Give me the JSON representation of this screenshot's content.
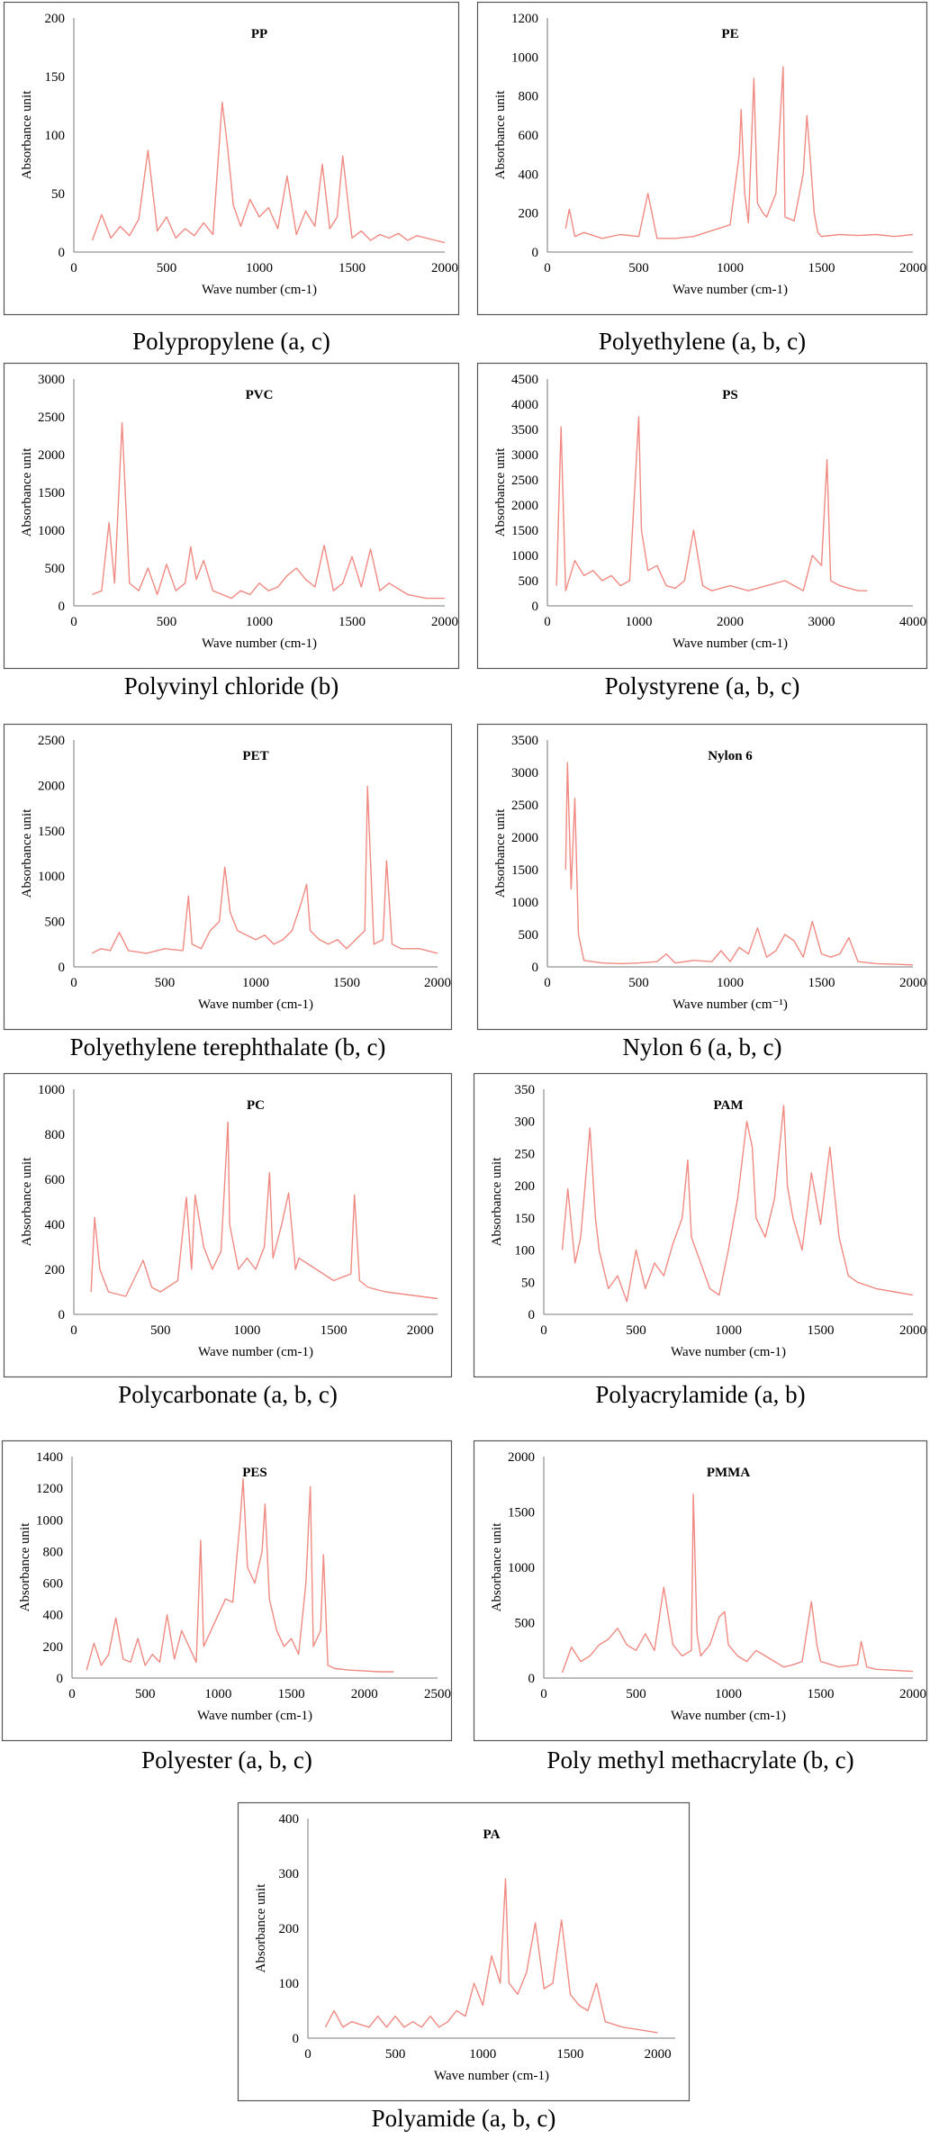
{
  "line_color": "#f08a82",
  "charts": [
    {
      "code": "PP",
      "caption": "Polypropylene (a, c)",
      "ylabel": "Absorbance unit",
      "xlabel": "Wave number (cm-1)",
      "yticks": [
        "200",
        "150",
        "100",
        "50",
        "0"
      ],
      "xticks": [
        "0",
        "500",
        "1000",
        "1500",
        "2000"
      ]
    },
    {
      "code": "PE",
      "caption": "Polyethylene (a, b, c)",
      "ylabel": "Absorbance unit",
      "xlabel": "Wave number (cm-1)",
      "yticks": [
        "1200",
        "1000",
        "800",
        "600",
        "400",
        "200",
        "0"
      ],
      "xticks": [
        "0",
        "500",
        "1000",
        "1500",
        "2000"
      ]
    },
    {
      "code": "PVC",
      "caption": "Polyvinyl chloride (b)",
      "ylabel": "Absorbance unit",
      "xlabel": "Wave number (cm-1)",
      "yticks": [
        "3000",
        "2500",
        "2000",
        "1500",
        "1000",
        "500",
        "0"
      ],
      "xticks": [
        "0",
        "500",
        "1000",
        "1500",
        "2000"
      ]
    },
    {
      "code": "PS",
      "caption": "Polystyrene (a, b, c)",
      "ylabel": "Absorbance unit",
      "xlabel": "Wave number (cm-1)",
      "yticks": [
        "4500",
        "4000",
        "3500",
        "3000",
        "2500",
        "2000",
        "1500",
        "1000",
        "500",
        "0"
      ],
      "xticks": [
        "0",
        "1000",
        "2000",
        "3000",
        "4000"
      ]
    },
    {
      "code": "PET",
      "caption": "Polyethylene terephthalate (b, c)",
      "ylabel": "Absorbance unit",
      "xlabel": "Wave number (cm-1)",
      "yticks": [
        "2500",
        "2000",
        "1500",
        "1000",
        "500",
        "0"
      ],
      "xticks": [
        "0",
        "500",
        "1000",
        "1500",
        "2000"
      ]
    },
    {
      "code": "Nylon 6",
      "caption": "Nylon 6 (a, b, c)",
      "ylabel": "Absorbance unit",
      "xlabel": "Wave number (cm⁻¹)",
      "yticks": [
        "3500",
        "3000",
        "2500",
        "2000",
        "1500",
        "1000",
        "500",
        "0"
      ],
      "xticks": [
        "0",
        "500",
        "1000",
        "1500",
        "2000"
      ]
    },
    {
      "code": "PC",
      "caption": "Polycarbonate (a, b, c)",
      "ylabel": "Absorbance unit",
      "xlabel": "Wave number (cm-1)",
      "yticks": [
        "1000",
        "800",
        "600",
        "400",
        "200",
        "0"
      ],
      "xticks": [
        "0",
        "500",
        "1000",
        "1500",
        "2000"
      ]
    },
    {
      "code": "PAM",
      "caption": "Polyacrylamide (a, b)",
      "ylabel": "Absorbance unit",
      "xlabel": "Wave number (cm-1)",
      "yticks": [
        "350",
        "300",
        "250",
        "200",
        "150",
        "100",
        "50",
        "0"
      ],
      "xticks": [
        "0",
        "500",
        "1000",
        "1500",
        "2000"
      ]
    },
    {
      "code": "PES",
      "caption": "Polyester (a, b, c)",
      "ylabel": "Absorbance unit",
      "xlabel": "Wave number (cm-1)",
      "yticks": [
        "1400",
        "1200",
        "1000",
        "800",
        "600",
        "400",
        "200",
        "0"
      ],
      "xticks": [
        "0",
        "500",
        "1000",
        "1500",
        "2000",
        "2500"
      ]
    },
    {
      "code": "PMMA",
      "caption": "Poly methyl methacrylate (b, c)",
      "ylabel": "Absorbance unit",
      "xlabel": "Wave number (cm-1)",
      "yticks": [
        "2000",
        "1500",
        "1000",
        "500",
        "0"
      ],
      "xticks": [
        "0",
        "500",
        "1000",
        "1500",
        "2000"
      ]
    },
    {
      "code": "PA",
      "caption": "Polyamide (a, b, c)",
      "ylabel": "Absorbance unit",
      "xlabel": "Wave number (cm-1)",
      "yticks": [
        "400",
        "300",
        "200",
        "100",
        "0"
      ],
      "xticks": [
        "0",
        "500",
        "1000",
        "1500",
        "2000"
      ]
    }
  ],
  "chart_data": [
    {
      "type": "line",
      "title": "PP",
      "xlabel": "Wave number (cm-1)",
      "ylabel": "Absorbance unit",
      "xlim": [
        0,
        2000
      ],
      "ylim": [
        0,
        200
      ],
      "x": [
        100,
        150,
        200,
        250,
        300,
        350,
        400,
        450,
        500,
        550,
        600,
        650,
        700,
        750,
        800,
        830,
        860,
        900,
        950,
        1000,
        1050,
        1100,
        1150,
        1200,
        1250,
        1300,
        1340,
        1380,
        1420,
        1450,
        1500,
        1550,
        1600,
        1650,
        1700,
        1750,
        1800,
        1850,
        1900,
        1950,
        2000
      ],
      "y": [
        10,
        32,
        12,
        22,
        14,
        28,
        87,
        18,
        30,
        12,
        20,
        14,
        25,
        15,
        128,
        88,
        40,
        22,
        45,
        30,
        38,
        20,
        65,
        15,
        35,
        22,
        75,
        20,
        30,
        82,
        12,
        18,
        10,
        15,
        12,
        16,
        10,
        14,
        12,
        10,
        8
      ]
    },
    {
      "type": "line",
      "title": "PE",
      "xlabel": "Wave number (cm-1)",
      "ylabel": "Absorbance unit",
      "xlim": [
        0,
        2000
      ],
      "ylim": [
        0,
        1200
      ],
      "x": [
        100,
        120,
        150,
        200,
        300,
        400,
        500,
        550,
        600,
        700,
        800,
        900,
        1000,
        1050,
        1060,
        1080,
        1100,
        1130,
        1150,
        1180,
        1200,
        1250,
        1290,
        1300,
        1350,
        1400,
        1420,
        1440,
        1460,
        1480,
        1500,
        1600,
        1700,
        1800,
        1900,
        2000
      ],
      "y": [
        120,
        220,
        80,
        100,
        70,
        90,
        80,
        300,
        70,
        70,
        80,
        110,
        140,
        500,
        730,
        300,
        150,
        890,
        250,
        200,
        180,
        300,
        950,
        180,
        160,
        400,
        700,
        460,
        200,
        100,
        80,
        90,
        85,
        90,
        80,
        90
      ]
    },
    {
      "type": "line",
      "title": "PVC",
      "xlabel": "Wave number (cm-1)",
      "ylabel": "Absorbance unit",
      "xlim": [
        0,
        2000
      ],
      "ylim": [
        0,
        3000
      ],
      "x": [
        100,
        150,
        190,
        220,
        260,
        300,
        350,
        400,
        450,
        500,
        550,
        600,
        630,
        660,
        700,
        750,
        800,
        850,
        900,
        950,
        1000,
        1050,
        1100,
        1150,
        1200,
        1250,
        1300,
        1350,
        1400,
        1450,
        1500,
        1550,
        1600,
        1650,
        1700,
        1800,
        1900,
        2000
      ],
      "y": [
        150,
        200,
        1100,
        300,
        2420,
        300,
        200,
        500,
        150,
        550,
        200,
        300,
        780,
        350,
        600,
        200,
        150,
        100,
        200,
        150,
        300,
        200,
        250,
        400,
        500,
        350,
        250,
        800,
        200,
        300,
        650,
        250,
        750,
        200,
        300,
        150,
        100,
        100
      ]
    },
    {
      "type": "line",
      "title": "PS",
      "xlabel": "Wave number (cm-1)",
      "ylabel": "Absorbance unit",
      "xlim": [
        0,
        4000
      ],
      "ylim": [
        0,
        4500
      ],
      "x": [
        100,
        150,
        200,
        300,
        400,
        500,
        600,
        700,
        800,
        900,
        1000,
        1030,
        1100,
        1200,
        1300,
        1400,
        1500,
        1600,
        1700,
        1800,
        2000,
        2200,
        2400,
        2600,
        2800,
        2900,
        3000,
        3060,
        3100,
        3200,
        3400,
        3500
      ],
      "y": [
        400,
        3550,
        300,
        900,
        600,
        700,
        500,
        600,
        400,
        500,
        3750,
        1500,
        700,
        800,
        400,
        350,
        500,
        1500,
        400,
        300,
        400,
        300,
        400,
        500,
        300,
        1000,
        800,
        2900,
        500,
        400,
        300,
        300
      ]
    },
    {
      "type": "line",
      "title": "PET",
      "xlabel": "Wave number (cm-1)",
      "ylabel": "Absorbance unit",
      "xlim": [
        0,
        2000
      ],
      "ylim": [
        0,
        2500
      ],
      "x": [
        100,
        150,
        200,
        250,
        300,
        400,
        500,
        600,
        630,
        650,
        700,
        750,
        800,
        830,
        860,
        900,
        950,
        1000,
        1050,
        1100,
        1150,
        1200,
        1250,
        1280,
        1300,
        1350,
        1400,
        1450,
        1500,
        1550,
        1600,
        1615,
        1650,
        1700,
        1720,
        1750,
        1800,
        1900,
        2000
      ],
      "y": [
        150,
        200,
        180,
        380,
        180,
        150,
        200,
        180,
        780,
        250,
        200,
        400,
        500,
        1100,
        600,
        400,
        350,
        300,
        350,
        250,
        300,
        400,
        700,
        910,
        400,
        300,
        250,
        300,
        200,
        300,
        400,
        1990,
        250,
        300,
        1170,
        250,
        200,
        200,
        150
      ]
    },
    {
      "type": "line",
      "title": "Nylon 6",
      "xlabel": "Wave number (cm⁻¹)",
      "ylabel": "Absorbance unit",
      "xlim": [
        0,
        2000
      ],
      "ylim": [
        0,
        3500
      ],
      "x": [
        100,
        110,
        130,
        150,
        170,
        200,
        300,
        400,
        500,
        600,
        650,
        700,
        800,
        900,
        950,
        1000,
        1050,
        1100,
        1150,
        1200,
        1250,
        1300,
        1350,
        1400,
        1450,
        1500,
        1550,
        1600,
        1650,
        1700,
        1800,
        1900,
        2000
      ],
      "y": [
        1500,
        3150,
        1200,
        2600,
        500,
        100,
        60,
        50,
        60,
        80,
        200,
        60,
        100,
        80,
        250,
        80,
        300,
        200,
        600,
        150,
        250,
        500,
        400,
        150,
        700,
        200,
        150,
        200,
        450,
        80,
        50,
        40,
        30
      ]
    },
    {
      "type": "line",
      "title": "PC",
      "xlabel": "Wave number (cm-1)",
      "ylabel": "Absorbance unit",
      "xlim": [
        0,
        2100
      ],
      "ylim": [
        0,
        1000
      ],
      "x": [
        100,
        120,
        150,
        200,
        300,
        400,
        450,
        500,
        600,
        650,
        680,
        700,
        750,
        800,
        850,
        890,
        900,
        950,
        1000,
        1050,
        1100,
        1130,
        1150,
        1200,
        1240,
        1280,
        1300,
        1400,
        1500,
        1600,
        1620,
        1650,
        1700,
        1800,
        1900,
        2000,
        2100
      ],
      "y": [
        100,
        430,
        200,
        100,
        80,
        240,
        120,
        100,
        150,
        520,
        200,
        530,
        300,
        200,
        280,
        855,
        400,
        200,
        250,
        200,
        300,
        630,
        250,
        400,
        540,
        200,
        250,
        200,
        150,
        180,
        530,
        150,
        120,
        100,
        90,
        80,
        70
      ]
    },
    {
      "type": "line",
      "title": "PAM",
      "xlabel": "Wave number (cm-1)",
      "ylabel": "Absorbance unit",
      "xlim": [
        0,
        2000
      ],
      "ylim": [
        0,
        350
      ],
      "x": [
        100,
        130,
        170,
        200,
        250,
        280,
        300,
        350,
        400,
        450,
        500,
        550,
        600,
        650,
        700,
        750,
        780,
        800,
        850,
        900,
        950,
        1000,
        1050,
        1100,
        1130,
        1150,
        1200,
        1250,
        1300,
        1320,
        1350,
        1400,
        1450,
        1500,
        1550,
        1600,
        1650,
        1700,
        1800,
        1900,
        2000
      ],
      "y": [
        100,
        195,
        80,
        120,
        290,
        150,
        100,
        40,
        60,
        20,
        100,
        40,
        80,
        60,
        110,
        150,
        240,
        120,
        80,
        40,
        30,
        100,
        180,
        300,
        260,
        150,
        120,
        180,
        325,
        200,
        150,
        100,
        220,
        140,
        260,
        120,
        60,
        50,
        40,
        35,
        30
      ]
    },
    {
      "type": "line",
      "title": "PES",
      "xlabel": "Wave number (cm-1)",
      "ylabel": "Absorbance unit",
      "xlim": [
        0,
        2500
      ],
      "ylim": [
        0,
        1400
      ],
      "x": [
        100,
        150,
        200,
        250,
        300,
        350,
        400,
        450,
        500,
        550,
        600,
        650,
        700,
        750,
        800,
        850,
        880,
        900,
        950,
        1000,
        1050,
        1100,
        1150,
        1170,
        1200,
        1250,
        1300,
        1320,
        1350,
        1400,
        1450,
        1500,
        1550,
        1600,
        1630,
        1650,
        1700,
        1720,
        1750,
        1800,
        1900,
        2000,
        2100,
        2200
      ],
      "y": [
        50,
        220,
        80,
        150,
        380,
        120,
        100,
        250,
        80,
        150,
        100,
        400,
        120,
        300,
        200,
        100,
        870,
        200,
        300,
        400,
        500,
        480,
        1000,
        1260,
        700,
        600,
        800,
        1100,
        500,
        300,
        200,
        250,
        150,
        600,
        1210,
        200,
        300,
        780,
        80,
        60,
        50,
        45,
        40,
        40
      ]
    },
    {
      "type": "line",
      "title": "PMMA",
      "xlabel": "Wave number (cm-1)",
      "ylabel": "Absorbance unit",
      "xlim": [
        0,
        2000
      ],
      "ylim": [
        0,
        2000
      ],
      "x": [
        100,
        150,
        200,
        250,
        300,
        350,
        400,
        450,
        500,
        550,
        600,
        650,
        700,
        750,
        800,
        810,
        830,
        850,
        900,
        950,
        980,
        1000,
        1050,
        1100,
        1150,
        1200,
        1250,
        1300,
        1350,
        1400,
        1450,
        1480,
        1500,
        1600,
        1700,
        1720,
        1750,
        1800,
        1900,
        2000
      ],
      "y": [
        50,
        280,
        150,
        200,
        300,
        350,
        450,
        300,
        250,
        400,
        250,
        820,
        300,
        200,
        250,
        1660,
        400,
        200,
        300,
        550,
        600,
        300,
        200,
        150,
        250,
        200,
        150,
        100,
        120,
        150,
        690,
        300,
        150,
        100,
        120,
        330,
        100,
        80,
        70,
        60
      ]
    },
    {
      "type": "line",
      "title": "PA",
      "xlabel": "Wave number (cm-1)",
      "ylabel": "Absorbance unit",
      "xlim": [
        0,
        2100
      ],
      "ylim": [
        0,
        400
      ],
      "x": [
        100,
        150,
        200,
        250,
        300,
        350,
        400,
        450,
        500,
        550,
        600,
        650,
        700,
        750,
        800,
        850,
        900,
        950,
        1000,
        1050,
        1100,
        1130,
        1150,
        1200,
        1250,
        1300,
        1350,
        1400,
        1450,
        1500,
        1550,
        1600,
        1650,
        1700,
        1800,
        1900,
        2000
      ],
      "y": [
        20,
        50,
        20,
        30,
        25,
        20,
        40,
        20,
        40,
        20,
        30,
        20,
        40,
        20,
        30,
        50,
        40,
        100,
        60,
        150,
        100,
        290,
        100,
        80,
        120,
        210,
        90,
        100,
        215,
        80,
        60,
        50,
        100,
        30,
        20,
        15,
        10
      ]
    }
  ]
}
